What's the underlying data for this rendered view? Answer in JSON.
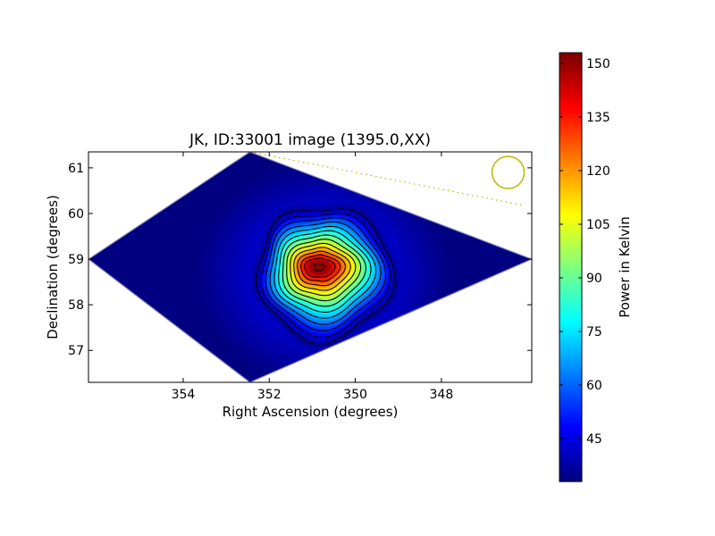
{
  "chart_data": [
    {
      "type": "heatmap",
      "title": "JK, ID:33001 image (1395.0,XX)",
      "xlabel": "Right Ascension (degrees)",
      "ylabel": "Declination (degrees)",
      "xlim": [
        356.2,
        345.9
      ],
      "ylim": [
        56.3,
        61.35
      ],
      "x_ticks": [
        354,
        352,
        350,
        348
      ],
      "x_tick_labels": [
        "354",
        "352",
        "350",
        "348"
      ],
      "y_ticks": [
        57,
        58,
        59,
        60,
        61
      ],
      "y_tick_labels": [
        "57",
        "58",
        "59",
        "60",
        "61"
      ],
      "x_reversed": true,
      "grid": false,
      "colormap": "jet",
      "map_region": {
        "left_corner": [
          356.2,
          59.0
        ],
        "top_corner": [
          352.45,
          61.35
        ],
        "right_corner": [
          345.9,
          59.0
        ],
        "bottom_corner": [
          352.45,
          56.3
        ]
      },
      "source": {
        "ra": 350.85,
        "dec": 58.82,
        "peak_kelvin": 152,
        "background_kelvin": 33
      },
      "contour_count": 13,
      "dotted_line": [
        [
          352.45,
          61.35
        ],
        [
          346.1,
          60.18
        ]
      ],
      "beam_circle": {
        "ra": 346.45,
        "dec": 60.9
      },
      "colors": {
        "contour": "#000000",
        "dotted_line": "#b8b800",
        "beam_circle": "#b8b800",
        "map_edge": "#8f8fc0"
      }
    },
    {
      "type": "heatmap",
      "role": "colorbar",
      "label": "Power in Kelvin",
      "range": [
        33,
        153
      ],
      "ticks": [
        45,
        60,
        75,
        90,
        105,
        120,
        135,
        150
      ],
      "tick_labels": [
        "45",
        "60",
        "75",
        "90",
        "105",
        "120",
        "135",
        "150"
      ],
      "colormap": "jet"
    }
  ]
}
